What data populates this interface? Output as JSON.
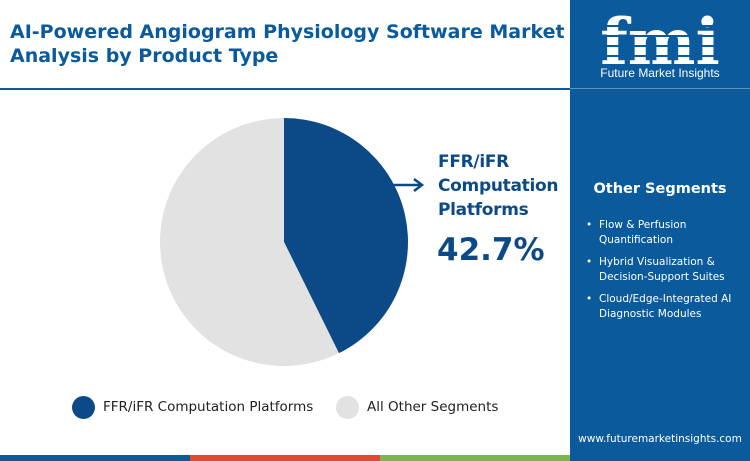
{
  "title": "AI-Powered Angiogram Physiology Software Market Analysis by Product Type",
  "chart_data": {
    "type": "pie",
    "categories": [
      "FFR/iFR Computation Platforms",
      "All Other Segments"
    ],
    "values": [
      42.7,
      57.3
    ],
    "colors": [
      "#0b4a86",
      "#e2e2e2"
    ],
    "legend_position": "bottom",
    "highlight": {
      "label": "FFR/iFR Computation Platforms",
      "value_text": "42.7%"
    }
  },
  "legend": [
    {
      "label": "FFR/iFR Computation Platforms",
      "color": "#0b4a86"
    },
    {
      "label": "All Other Segments",
      "color": "#e2e2e2"
    }
  ],
  "sidebar": {
    "logo_letters": "fmi",
    "logo_tagline": "Future Market Insights",
    "other_segments_title": "Other Segments",
    "other_segments": [
      "Flow & Perfusion Quantification",
      "Hybrid Visualization & Decision-Support Suites",
      "Cloud/Edge-Integrated AI Diagnostic Modules"
    ],
    "website": "www.futuremarketinsights.com",
    "background": "#0b5a9c"
  },
  "bottom_bar_colors": [
    "#0b5a9c",
    "#e2492f",
    "#7ab648",
    "#0b5a9c"
  ]
}
